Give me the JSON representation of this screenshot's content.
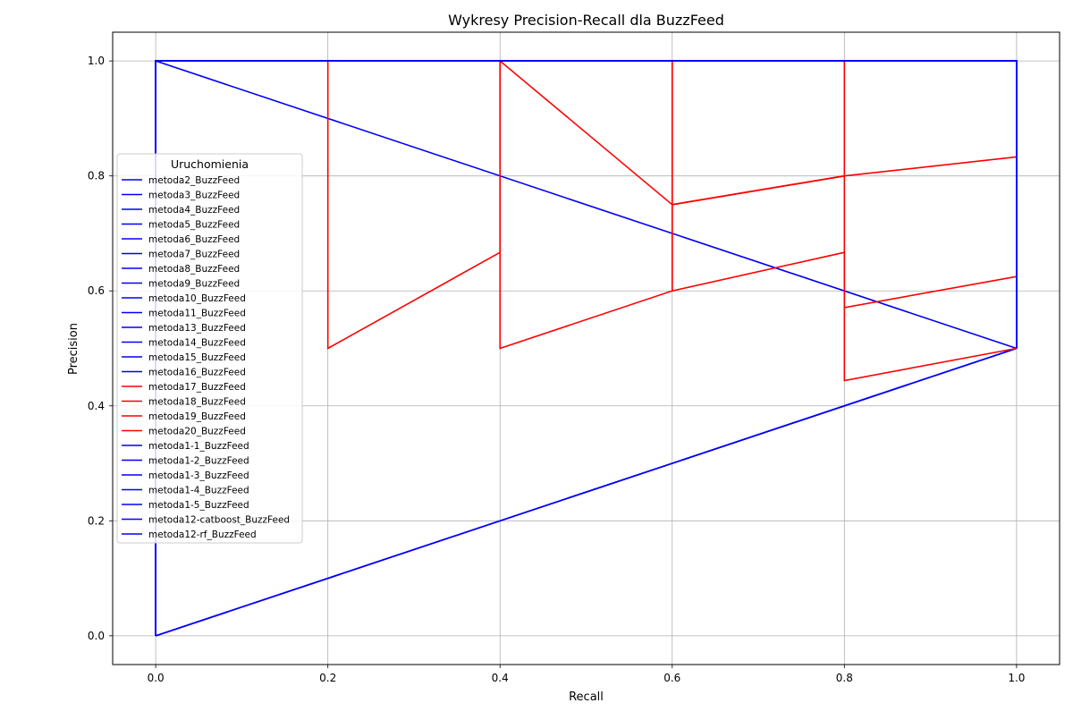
{
  "chart_data": {
    "type": "line",
    "title": "Wykresy Precision-Recall dla BuzzFeed",
    "xlabel": "Recall",
    "ylabel": "Precision",
    "xlim": [
      -0.05,
      1.05
    ],
    "ylim": [
      -0.05,
      1.05
    ],
    "xticks": [
      0.0,
      0.2,
      0.4,
      0.6,
      0.8,
      1.0
    ],
    "yticks": [
      0.0,
      0.2,
      0.4,
      0.6,
      0.8,
      1.0
    ],
    "xtick_labels": [
      "0.0",
      "0.2",
      "0.4",
      "0.6",
      "0.8",
      "1.0"
    ],
    "ytick_labels": [
      "0.0",
      "0.2",
      "0.4",
      "0.6",
      "0.8",
      "1.0"
    ],
    "grid": true,
    "legend": {
      "title": "Uruchomienia",
      "placement": "center-left"
    },
    "series": [
      {
        "name": "metoda2_BuzzFeed",
        "color": "#0000ff",
        "x": [
          0,
          0,
          1,
          1
        ],
        "y": [
          0,
          1,
          1,
          0.5
        ]
      },
      {
        "name": "metoda3_BuzzFeed",
        "color": "#0000ff",
        "x": [
          0,
          0,
          1,
          1
        ],
        "y": [
          0,
          1,
          1,
          0.5
        ]
      },
      {
        "name": "metoda4_BuzzFeed",
        "color": "#0000ff",
        "x": [
          0,
          1
        ],
        "y": [
          0,
          0.5
        ]
      },
      {
        "name": "metoda5_BuzzFeed",
        "color": "#0000ff",
        "x": [
          0,
          1
        ],
        "y": [
          0,
          0.5
        ]
      },
      {
        "name": "metoda6_BuzzFeed",
        "color": "#0000ff",
        "x": [
          0,
          0,
          1,
          1
        ],
        "y": [
          0,
          1,
          1,
          0.5
        ]
      },
      {
        "name": "metoda7_BuzzFeed",
        "color": "#0000ff",
        "x": [
          0,
          0,
          1,
          1
        ],
        "y": [
          0,
          1,
          1,
          0.5
        ]
      },
      {
        "name": "metoda8_BuzzFeed",
        "color": "#0000ff",
        "x": [
          0,
          0,
          1,
          1
        ],
        "y": [
          0,
          1,
          1,
          0.5
        ]
      },
      {
        "name": "metoda9_BuzzFeed",
        "color": "#0000ff",
        "x": [
          0,
          0,
          1,
          1
        ],
        "y": [
          0,
          1,
          1,
          0.5
        ]
      },
      {
        "name": "metoda10_BuzzFeed",
        "color": "#0000ff",
        "x": [
          0,
          0,
          1
        ],
        "y": [
          0,
          1,
          0.5
        ]
      },
      {
        "name": "metoda11_BuzzFeed",
        "color": "#0000ff",
        "x": [
          0,
          0,
          1,
          1
        ],
        "y": [
          0,
          1,
          1,
          0.5
        ]
      },
      {
        "name": "metoda13_BuzzFeed",
        "color": "#0000ff",
        "x": [
          0,
          0,
          1,
          1
        ],
        "y": [
          0,
          1,
          1,
          0.5
        ]
      },
      {
        "name": "metoda14_BuzzFeed",
        "color": "#0000ff",
        "x": [
          0,
          1
        ],
        "y": [
          0,
          0.5
        ]
      },
      {
        "name": "metoda15_BuzzFeed",
        "color": "#0000ff",
        "x": [
          0,
          0,
          1,
          1
        ],
        "y": [
          0,
          1,
          1,
          0.5
        ]
      },
      {
        "name": "metoda16_BuzzFeed",
        "color": "#0000ff",
        "x": [
          0,
          0,
          1,
          1
        ],
        "y": [
          0,
          1,
          1,
          0.5
        ]
      },
      {
        "name": "metoda17_BuzzFeed",
        "color": "#ff0000",
        "x": [
          0,
          0,
          0.2,
          0.2,
          0.4,
          0.4,
          0.6,
          0.6,
          0.8,
          0.8,
          1.0
        ],
        "y": [
          0,
          1,
          1,
          0.5,
          0.667,
          1,
          1,
          0.75,
          0.8,
          1,
          1
        ]
      },
      {
        "name": "metoda18_BuzzFeed",
        "color": "#ff0000",
        "x": [
          0,
          0,
          0.4,
          0.4,
          0.6,
          0.6,
          0.8,
          0.8,
          1.0,
          1.0
        ],
        "y": [
          0,
          1,
          1,
          0.5,
          0.6,
          0.75,
          0.8,
          0.444,
          0.5,
          1
        ]
      },
      {
        "name": "metoda19_BuzzFeed",
        "color": "#ff0000",
        "x": [
          0,
          0,
          0.6,
          0.6,
          0.8,
          0.8,
          1.0,
          1.0
        ],
        "y": [
          0,
          1,
          1,
          0.6,
          0.667,
          0.571,
          0.625,
          1
        ]
      },
      {
        "name": "metoda20_BuzzFeed",
        "color": "#ff0000",
        "x": [
          0,
          0,
          0.4,
          0.6,
          0.8,
          1.0
        ],
        "y": [
          0,
          1,
          1,
          0.75,
          0.8,
          0.833
        ]
      },
      {
        "name": "metoda1-1_BuzzFeed",
        "color": "#0000ff",
        "x": [
          0,
          0,
          1,
          1
        ],
        "y": [
          0,
          1,
          1,
          0.5
        ]
      },
      {
        "name": "metoda1-2_BuzzFeed",
        "color": "#0000ff",
        "x": [
          0,
          0,
          1,
          1
        ],
        "y": [
          0,
          1,
          1,
          0.5
        ]
      },
      {
        "name": "metoda1-3_BuzzFeed",
        "color": "#0000ff",
        "x": [
          0,
          0,
          1,
          1
        ],
        "y": [
          0,
          1,
          1,
          0.5
        ]
      },
      {
        "name": "metoda1-4_BuzzFeed",
        "color": "#0000ff",
        "x": [
          0,
          0,
          1,
          1
        ],
        "y": [
          0,
          1,
          1,
          0.5
        ]
      },
      {
        "name": "metoda1-5_BuzzFeed",
        "color": "#0000ff",
        "x": [
          0,
          0,
          1,
          1
        ],
        "y": [
          0,
          1,
          1,
          0.5
        ]
      },
      {
        "name": "metoda12-catboost_BuzzFeed",
        "color": "#0000ff",
        "x": [
          0,
          0,
          1,
          1
        ],
        "y": [
          0,
          1,
          1,
          0.5
        ]
      },
      {
        "name": "metoda12-rf_BuzzFeed",
        "color": "#0000ff",
        "x": [
          0,
          0,
          1,
          1
        ],
        "y": [
          0,
          1,
          1,
          0.5
        ]
      }
    ]
  }
}
